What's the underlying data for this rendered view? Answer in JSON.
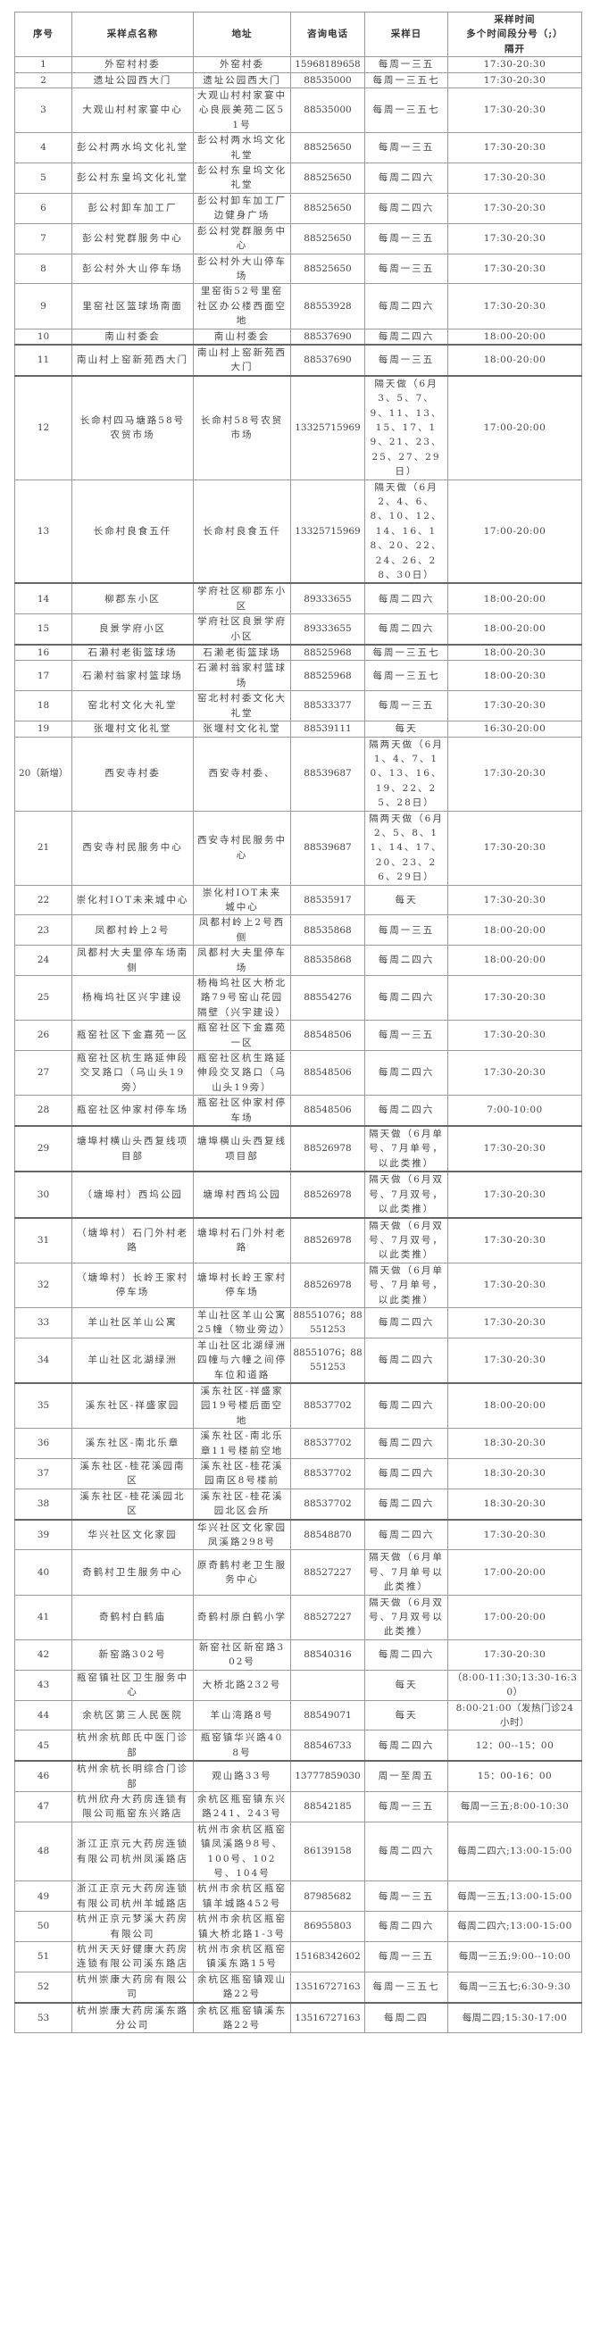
{
  "header": [
    "序号",
    "采样点名称",
    "地址",
    "咨询电话",
    "采样日",
    "采样时间\n多个时间段分号（;）\n隔开"
  ],
  "rows": [
    [
      "1",
      "外窑村村委",
      "外窑村委",
      "15968189658",
      "每周一三五",
      "17:30-20:30"
    ],
    [
      "2",
      "遗址公园西大门",
      "遗址公园西大门",
      "88535000",
      "每周一三五七",
      "17:30-20:30"
    ],
    [
      "3",
      "大观山村村家宴中心",
      "大观山村村家宴中心良辰美苑二区51号",
      "88535000",
      "每周一三五七",
      "17:30-20:30"
    ],
    [
      "4",
      "彭公村两水坞文化礼堂",
      "彭公村两水坞文化礼堂",
      "88525650",
      "每周一三五",
      "17:30-20:30"
    ],
    [
      "5",
      "彭公村东皇坞文化礼堂",
      "彭公村东皇坞文化礼堂",
      "88525650",
      "每周二四六",
      "17:30-20:30"
    ],
    [
      "6",
      "彭公村卸车加工厂",
      "彭公村卸车加工厂边健身广场",
      "88525650",
      "每周二四六",
      "17:30-20:30"
    ],
    [
      "7",
      "彭公村党群服务中心",
      "彭公村党群服务中心",
      "88525650",
      "每周一三五",
      "17:30-20:30"
    ],
    [
      "8",
      "彭公村外大山停车场",
      "彭公村外大山停车场",
      "88525650",
      "每周一三五",
      "17:30-20:30"
    ],
    [
      "9",
      "里窑社区篮球场南面",
      "里窑街52号里窑社区办公楼西面空地",
      "88553928",
      "每周二四六",
      "17:30-20:30"
    ],
    [
      "10",
      "南山村委会",
      "南山村委会",
      "88537690",
      "每周二四六",
      "18:00-20:00"
    ],
    [
      "11",
      "南山村上窑新苑西大门",
      "南山村上窑新苑西大门",
      "88537690",
      "每周一三五",
      "18:00-20:00"
    ],
    [
      "12",
      "长命村四马塘路58号农贸市场",
      "长命村58号农贸市场",
      "13325715969",
      "隔天做（6月3、5、7、9、11、13、15、17、19、21、23、25、27、29日）",
      "17:00-20:00"
    ],
    [
      "13",
      "长命村良食五仟",
      "长命村良食五仟",
      "13325715969",
      "隔天做（6月2、4、6、8、10、12、14、16、18、20、22、24、26、28、30日）",
      "17:00-20:00"
    ],
    [
      "14",
      "柳郡东小区",
      "学府社区柳郡东小区",
      "89333655",
      "每周二四六",
      "18:00-20:00"
    ],
    [
      "15",
      "良景学府小区",
      "学府社区良景学府小区",
      "89333655",
      "每周二四六",
      "18:00-20:00"
    ],
    [
      "16",
      "石濑村老街篮球场",
      "石濑老街篮球场",
      "88525968",
      "每周一三五七",
      "18:00-20:30"
    ],
    [
      "17",
      "石濑村翁家村篮球场",
      "石濑村翁家村篮球场",
      "88525968",
      "每周一三五七",
      "18:00-20:30"
    ],
    [
      "18",
      "窑北村文化大礼堂",
      "窑北村村委文化大礼堂",
      "88533377",
      "每周一三五",
      "17:30-20:30"
    ],
    [
      "19",
      "张堰村文化礼堂",
      "张堰村文化礼堂",
      "88539111",
      "每天",
      "16:30-20:00"
    ],
    [
      "20（新增）",
      "西安寺村委",
      "西安寺村委、",
      "88539687",
      "隔两天做（6月1、4、7、10、13、16、19、22、25、28日）",
      "17:30-20:30"
    ],
    [
      "21",
      "西安寺村民服务中心",
      "西安寺村民服务中心",
      "88539687",
      "隔两天做（6月2、5、8、11、14、17、20、23、26、29日）",
      "17:30-20:30"
    ],
    [
      "22",
      "崇化村IOT未来城中心",
      "崇化村IOT未来城中心",
      "88535917",
      "每天",
      "17:30-20:30"
    ],
    [
      "23",
      "凤都村岭上2号",
      "凤都村岭上2号西侧",
      "88535868",
      "每周一三五",
      "18:00-20:00"
    ],
    [
      "24",
      "凤都村大夫里停车场南侧",
      "凤都村大夫里停车场",
      "88535868",
      "每周二四六",
      "18:00-20:00"
    ],
    [
      "25",
      "杨梅坞社区兴宇建设",
      "杨梅坞社区大桥北路79号窑山花园隔壁（兴宇建设）",
      "88554276",
      "每周二四六",
      "17:30-20:30"
    ],
    [
      "26",
      "瓶窑社区下金嘉苑一区",
      "瓶窑社区下金嘉苑一区",
      "88548506",
      "每周一三五",
      "17:30-20:30"
    ],
    [
      "27",
      "瓶窑社区杭生路延伸段交叉路口（乌山头19旁）",
      "瓶窑社区杭生路延伸段交叉路口（乌山头19旁）",
      "88548506",
      "每周二四六",
      "17:30-20:30"
    ],
    [
      "28",
      "瓶窑社区仲家村停车场",
      "瓶窑社区仲家村停车场",
      "88548506",
      "每周二四六",
      "7:00-10:00"
    ],
    [
      "29",
      "塘埠村横山头西复线项目部",
      "塘埠横山头西复线项目部",
      "88526978",
      "隔天做（6月单号、7月单号，以此类推）",
      "17:30-20:30"
    ],
    [
      "30",
      "（塘埠村）西坞公园",
      "塘埠村西坞公园",
      "88526978",
      "隔天做（6月双号、7月双号，以此类推）",
      "17:30-20:30"
    ],
    [
      "31",
      "（塘埠村）石门外村老路",
      "塘埠村石门外村老路",
      "88526978",
      "隔天做（6月双号、7月双号，以此类推）",
      "17:30-20:30"
    ],
    [
      "32",
      "（塘埠村）长岭王家村停车场",
      "塘埠村长岭王家村停车场",
      "88526978",
      "隔天做（6月单号、7月单号，以此类推）",
      "17:30-20:30"
    ],
    [
      "33",
      "羊山社区羊山公寓",
      "羊山社区羊山公寓25幢（物业旁边）",
      "88551076；88551253",
      "每周二四六",
      "17:30-20:30"
    ],
    [
      "34",
      "羊山社区北湖绿洲",
      "羊山社区北湖绿洲四幢与六幢之间停车位和道路",
      "88551076；88551253",
      "每周二四六",
      "17:30-20:30"
    ],
    [
      "35",
      "溪东社区-祥盛家园",
      "溪东社区-祥盛家园19号楼后面空地",
      "88537702",
      "每周二四六",
      "18:00-20:00"
    ],
    [
      "36",
      "溪东社区-南北乐章",
      "溪东社区-南北乐章11号楼前空地",
      "88537702",
      "每周二四六",
      "18:30-20:30"
    ],
    [
      "37",
      "溪东社区-桂花溪园南区",
      "溪东社区-桂花溪园南区8号楼前",
      "88537702",
      "每周二四六",
      "18:30-20:30"
    ],
    [
      "38",
      "溪东社区-桂花溪园北区",
      "溪东社区-桂花溪园北区会所",
      "88537702",
      "每周二四六",
      "18:30-20:30"
    ],
    [
      "39",
      "华兴社区文化家园",
      "华兴社区文化家园凤溪路298号",
      "88548870",
      "每周二四六",
      "17:30-20:30"
    ],
    [
      "40",
      "奇鹤村卫生服务中心",
      "原奇鹤村老卫生服务中心",
      "88527227",
      "隔天做（6月单号、7月单号以此类推）",
      "17:00-20:00"
    ],
    [
      "41",
      "奇鹤村白鹤庙",
      "奇鹤村原白鹤小学",
      "88527227",
      "隔天做（6月双号、7月双号以此类推）",
      "17:00-20:00"
    ],
    [
      "42",
      "新窑路302号",
      "新窑社区新窑路302号",
      "88540316",
      "每周二四六",
      "17:30-20:30"
    ],
    [
      "43",
      "瓶窑镇社区卫生服务中心",
      "大桥北路232号",
      "",
      "每天",
      "（8:00-11:30;13:30-16:30）"
    ],
    [
      "44",
      "余杭区第三人民医院",
      "羊山湾路8号",
      "88549071",
      "每天",
      "8:00-21:00（发热门诊24小时）"
    ],
    [
      "45",
      "杭州余杭郎氏中医门诊部",
      "瓶窑镇华兴路408号",
      "88546733",
      "每周二四六",
      "12：00--15：00"
    ],
    [
      "46",
      "杭州余杭长明综合门诊部",
      "观山路33号",
      "13777859030",
      "周一至周五",
      "15：00-16：00"
    ],
    [
      "47",
      "杭州欣舟大药房连锁有限公司瓶窑东兴路店",
      "余杭区瓶窑镇东兴路241、243号",
      "88542185",
      "每周一三五",
      "每周一三五;8:00-10:30"
    ],
    [
      "48",
      "浙江正京元大药房连锁有限公司杭州凤溪路店",
      "杭州市余杭区瓶窑镇凤溪路98号、100号、102号、104号",
      "86139158",
      "每周二四六",
      "每周二四六;13:00-15:00"
    ],
    [
      "49",
      "浙江正京元大药房连锁有限公司杭州羊城路店",
      "杭州市余杭区瓶窑镇羊城路452号",
      "87985682",
      "每周一三五",
      "每周一三五;13:00-15:00"
    ],
    [
      "50",
      "杭州正京元梦溪大药房有限公司",
      "杭州市余杭区瓶窑镇大桥北路1-3号",
      "86955803",
      "每周二四六",
      "每周二四六;13:00-15:00"
    ],
    [
      "51",
      "杭州天天好健康大药房连锁有限公司溪东路店",
      "杭州市余杭区瓶窑镇溪东路15号",
      "15168342602",
      "每周一三五",
      "每周一三五;9:00--10:00"
    ],
    [
      "52",
      "杭州崇康大药房有限公司",
      "余杭区瓶窑镇观山路22号",
      "13516727163",
      "每周一三五七",
      "每周一三五七;6:30-9:30"
    ],
    [
      "53",
      "杭州崇康大药房溪东路分公司",
      "余杭区瓶窑镇溪东路22号",
      "13516727163",
      "每周二四",
      "每周二四;15:30-17:00"
    ]
  ]
}
